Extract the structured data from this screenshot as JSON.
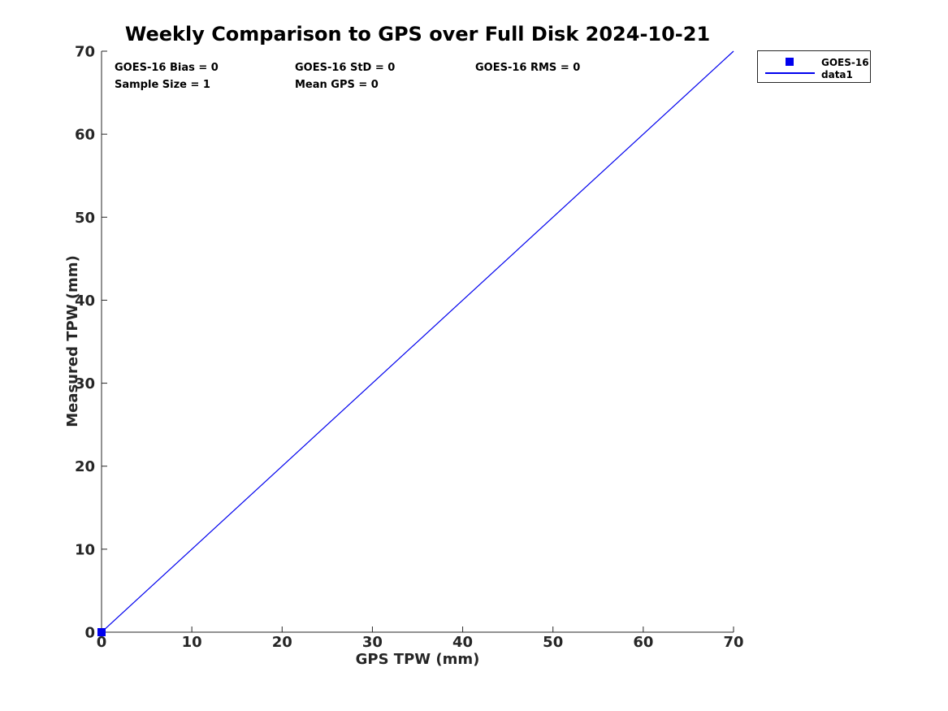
{
  "figure": {
    "background": "#ffffff",
    "text_color": "#000000"
  },
  "chart_data": {
    "type": "line",
    "title": "Weekly Comparison to GPS over Full Disk 2024-10-21",
    "xlabel": "GPS TPW (mm)",
    "ylabel": "Measured TPW (mm)",
    "xlim": [
      0,
      70
    ],
    "ylim": [
      0,
      70
    ],
    "xticks": [
      0,
      10,
      20,
      30,
      40,
      50,
      60,
      70
    ],
    "yticks": [
      0,
      10,
      20,
      30,
      40,
      50,
      60,
      70
    ],
    "grid": false,
    "axis_color": "#262626",
    "series": [
      {
        "name": "GOES-16",
        "type": "scatter",
        "marker": "square",
        "color": "#0000ee",
        "points": [
          [
            0,
            0
          ]
        ]
      },
      {
        "name": "data1",
        "type": "line",
        "color": "#0000ee",
        "points": [
          [
            0,
            0
          ],
          [
            70,
            70
          ]
        ]
      }
    ],
    "legend": {
      "position": "outside-top-right",
      "entries": [
        {
          "label": "GOES-16",
          "glyph": "square-marker",
          "color": "#0000ee"
        },
        {
          "label": "data1",
          "glyph": "line",
          "color": "#0000ee"
        }
      ]
    },
    "stats": {
      "rows": [
        [
          "GOES-16 Bias = 0",
          "GOES-16 StD = 0",
          "GOES-16 RMS = 0"
        ],
        [
          "Sample Size = 1",
          "Mean GPS = 0"
        ]
      ]
    }
  }
}
